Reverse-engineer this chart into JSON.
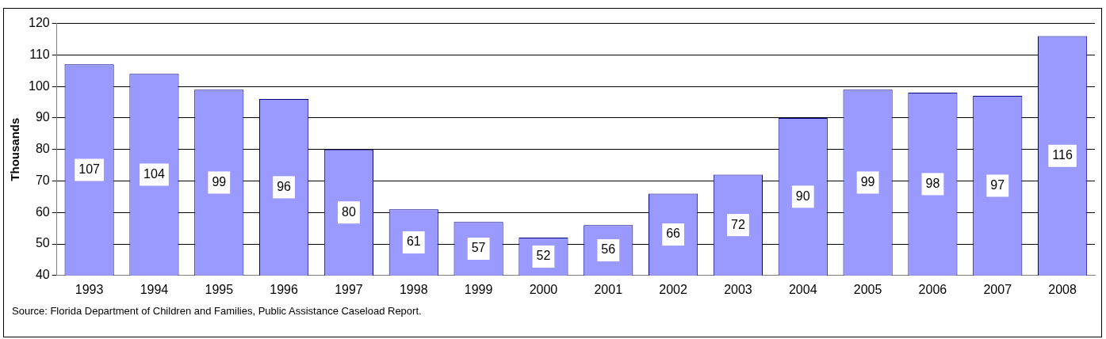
{
  "chart_data": {
    "type": "bar",
    "ylabel": "Thousands",
    "categories": [
      "1993",
      "1994",
      "1995",
      "1996",
      "1997",
      "1998",
      "1999",
      "2000",
      "2001",
      "2002",
      "2003",
      "2004",
      "2005",
      "2006",
      "2007",
      "2008"
    ],
    "values": [
      107,
      104,
      99,
      96,
      80,
      61,
      57,
      52,
      56,
      66,
      72,
      90,
      99,
      98,
      97,
      116
    ],
    "color": "#9999ff",
    "data_labels": true,
    "ylim": [
      40,
      120
    ],
    "yticks": [
      40,
      50,
      60,
      70,
      80,
      90,
      100,
      110,
      120
    ],
    "grid": "y",
    "legend": false,
    "annotations": [
      "Source:  Florida Department of Children and Families, Public Assistance Caseload Report."
    ]
  }
}
